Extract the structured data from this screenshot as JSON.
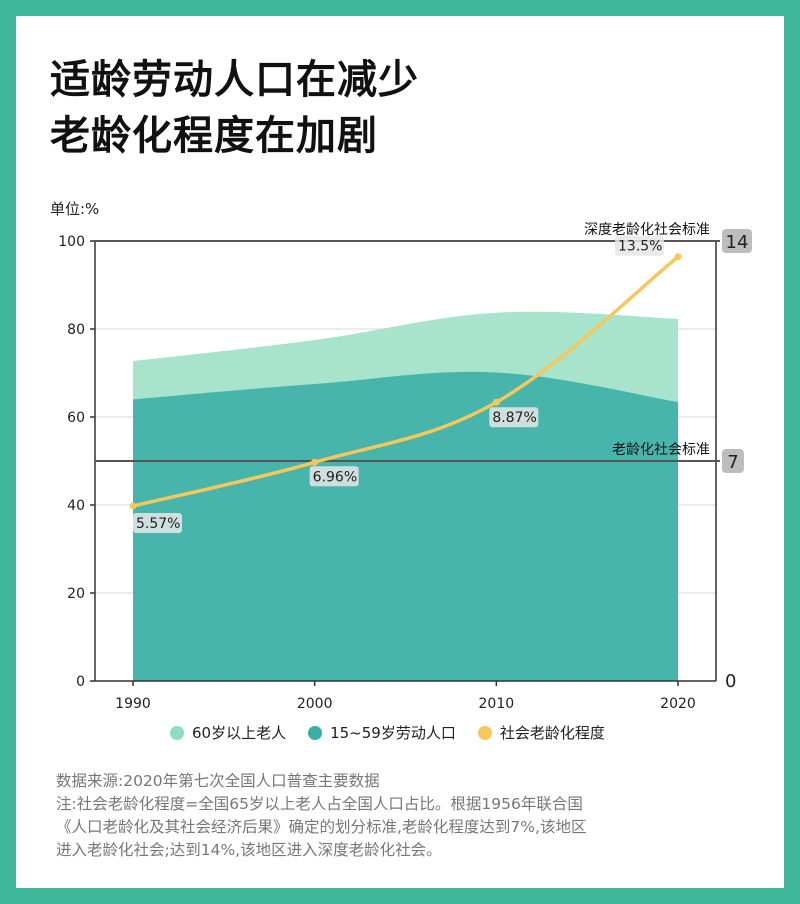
{
  "title_lines": [
    "适龄劳动人口在减少",
    "老龄化程度在加剧"
  ],
  "unit_label": "单位:%",
  "colors": {
    "frame": "#3fb899",
    "elderly": "#a8e3cb",
    "labor": "#48b5ad",
    "aging": "#f6c75a"
  },
  "chart_data": {
    "type": "area",
    "x": [
      1990,
      2000,
      2010,
      2020
    ],
    "ylim": [
      0,
      100
    ],
    "yticks": [
      "0",
      "20",
      "40",
      "60",
      "80",
      "100"
    ],
    "y2lim": [
      0,
      14
    ],
    "y2ticks": [
      "0",
      "7",
      "14"
    ],
    "series": [
      {
        "name": "60岁以上老人",
        "type": "area",
        "values": [
          72.7,
          77.5,
          83.7,
          82.3
        ]
      },
      {
        "name": "15~59岁劳动人口",
        "type": "area",
        "values": [
          64.0,
          67.5,
          70.1,
          63.4
        ]
      },
      {
        "name": "社会老龄化程度",
        "type": "line",
        "axis": "right",
        "values": [
          5.57,
          6.96,
          8.87,
          13.5
        ],
        "labels": [
          "5.57%",
          "6.96%",
          "8.87%",
          "13.5%"
        ]
      }
    ],
    "reference_lines": [
      {
        "label": "深度老龄化社会标准",
        "value": 14,
        "tag": "14"
      },
      {
        "label": "老龄化社会标准",
        "value": 7,
        "tag": "7"
      }
    ],
    "grid": true,
    "legend": "bottom"
  },
  "source_lines": [
    "数据来源:2020年第七次全国人口普查主要数据",
    "注:社会老龄化程度=全国65岁以上老人占全国人口占比。根据1956年联合国",
    "《人口老龄化及其社会经济后果》确定的划分标准,老龄化程度达到7%,该地区",
    "进入老龄化社会;达到14%,该地区进入深度老龄化社会。"
  ]
}
